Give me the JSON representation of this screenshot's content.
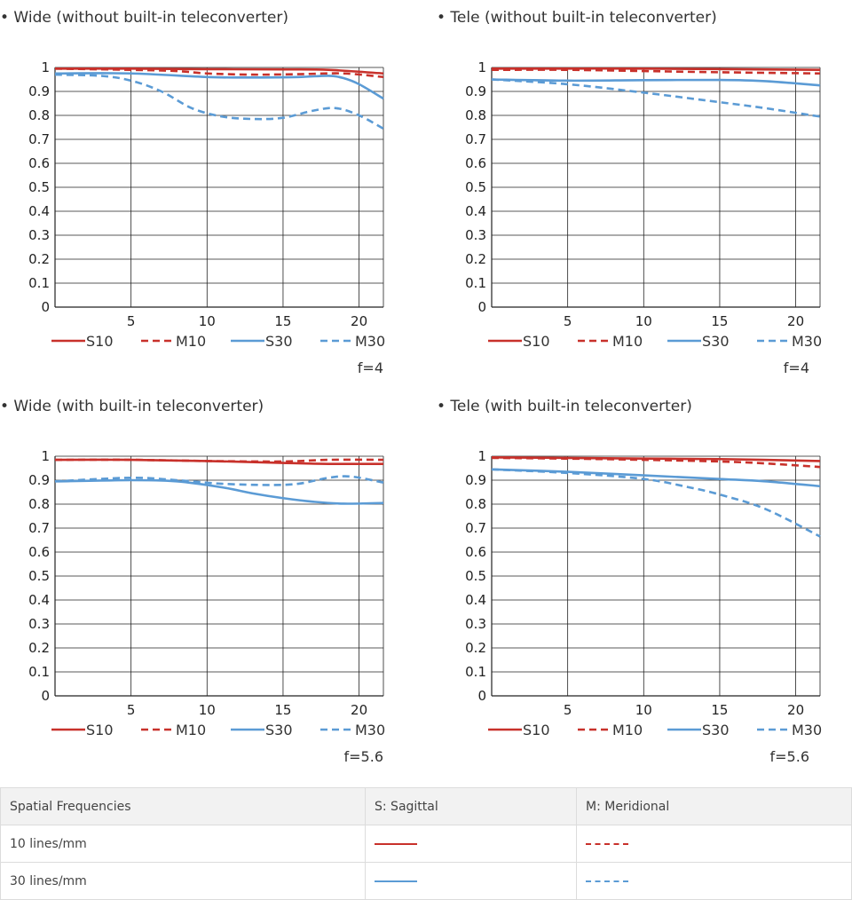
{
  "charts": [
    {
      "title": "• Wide (without built-in teleconverter)",
      "aperture": "f=4"
    },
    {
      "title": "• Tele (without built-in teleconverter)",
      "aperture": "f=4"
    },
    {
      "title": "• Wide (with built-in teleconverter)",
      "aperture": "f=5.6"
    },
    {
      "title": "• Tele (with built-in teleconverter)",
      "aperture": "f=5.6"
    }
  ],
  "chart_data": [
    {
      "type": "line",
      "title": "• Wide (without built-in teleconverter)",
      "xlim": [
        0,
        21.6
      ],
      "ylim": [
        0,
        1
      ],
      "x_ticks": [
        5,
        10,
        15,
        20
      ],
      "y_ticks": [
        0,
        0.1,
        0.2,
        0.3,
        0.4,
        0.5,
        0.6,
        0.7,
        0.8,
        0.9,
        1
      ],
      "grid": true,
      "legend": "bottom",
      "series": [
        {
          "name": "S10",
          "color": "#c8312b",
          "style": "solid",
          "points": [
            [
              0,
              0.995
            ],
            [
              5,
              0.995
            ],
            [
              10,
              0.993
            ],
            [
              15,
              0.992
            ],
            [
              18,
              0.99
            ],
            [
              21.6,
              0.975
            ]
          ]
        },
        {
          "name": "M10",
          "color": "#c8312b",
          "style": "dashed",
          "points": [
            [
              0,
              0.995
            ],
            [
              5,
              0.99
            ],
            [
              8,
              0.985
            ],
            [
              10,
              0.975
            ],
            [
              13,
              0.97
            ],
            [
              16,
              0.972
            ],
            [
              19,
              0.975
            ],
            [
              21.6,
              0.96
            ]
          ]
        },
        {
          "name": "S30",
          "color": "#5b9bd5",
          "style": "solid",
          "points": [
            [
              0,
              0.975
            ],
            [
              5,
              0.975
            ],
            [
              10,
              0.96
            ],
            [
              13,
              0.958
            ],
            [
              16,
              0.96
            ],
            [
              18,
              0.965
            ],
            [
              19,
              0.955
            ],
            [
              20,
              0.93
            ],
            [
              21.6,
              0.87
            ]
          ]
        },
        {
          "name": "M30",
          "color": "#5b9bd5",
          "style": "dashed",
          "points": [
            [
              0,
              0.97
            ],
            [
              3,
              0.965
            ],
            [
              5,
              0.945
            ],
            [
              7,
              0.9
            ],
            [
              9,
              0.83
            ],
            [
              11,
              0.795
            ],
            [
              13,
              0.785
            ],
            [
              15,
              0.79
            ],
            [
              17,
              0.82
            ],
            [
              18.5,
              0.83
            ],
            [
              20,
              0.8
            ],
            [
              21.6,
              0.745
            ]
          ]
        }
      ]
    },
    {
      "type": "line",
      "title": "• Tele (without built-in teleconverter)",
      "xlim": [
        0,
        21.6
      ],
      "ylim": [
        0,
        1
      ],
      "x_ticks": [
        5,
        10,
        15,
        20
      ],
      "y_ticks": [
        0,
        0.1,
        0.2,
        0.3,
        0.4,
        0.5,
        0.6,
        0.7,
        0.8,
        0.9,
        1
      ],
      "grid": true,
      "legend": "bottom",
      "series": [
        {
          "name": "S10",
          "color": "#c8312b",
          "style": "solid",
          "points": [
            [
              0,
              0.995
            ],
            [
              10,
              0.995
            ],
            [
              21.6,
              0.99
            ]
          ]
        },
        {
          "name": "M10",
          "color": "#c8312b",
          "style": "dashed",
          "points": [
            [
              0,
              0.99
            ],
            [
              5,
              0.99
            ],
            [
              10,
              0.985
            ],
            [
              15,
              0.98
            ],
            [
              21.6,
              0.975
            ]
          ]
        },
        {
          "name": "S30",
          "color": "#5b9bd5",
          "style": "solid",
          "points": [
            [
              0,
              0.95
            ],
            [
              5,
              0.945
            ],
            [
              10,
              0.947
            ],
            [
              15,
              0.948
            ],
            [
              18,
              0.943
            ],
            [
              21.6,
              0.925
            ]
          ]
        },
        {
          "name": "M30",
          "color": "#5b9bd5",
          "style": "dashed",
          "points": [
            [
              0,
              0.95
            ],
            [
              5,
              0.93
            ],
            [
              10,
              0.895
            ],
            [
              15,
              0.855
            ],
            [
              18,
              0.83
            ],
            [
              21.6,
              0.795
            ]
          ]
        }
      ]
    },
    {
      "type": "line",
      "title": "• Wide (with built-in teleconverter)",
      "xlim": [
        0,
        21.6
      ],
      "ylim": [
        0,
        1
      ],
      "x_ticks": [
        5,
        10,
        15,
        20
      ],
      "y_ticks": [
        0,
        0.1,
        0.2,
        0.3,
        0.4,
        0.5,
        0.6,
        0.7,
        0.8,
        0.9,
        1
      ],
      "grid": true,
      "legend": "bottom",
      "series": [
        {
          "name": "S10",
          "color": "#c8312b",
          "style": "solid",
          "points": [
            [
              0,
              0.985
            ],
            [
              5,
              0.985
            ],
            [
              10,
              0.98
            ],
            [
              15,
              0.972
            ],
            [
              18,
              0.968
            ],
            [
              21.6,
              0.968
            ]
          ]
        },
        {
          "name": "M10",
          "color": "#c8312b",
          "style": "dashed",
          "points": [
            [
              0,
              0.985
            ],
            [
              5,
              0.985
            ],
            [
              10,
              0.98
            ],
            [
              15,
              0.978
            ],
            [
              18,
              0.985
            ],
            [
              21.6,
              0.985
            ]
          ]
        },
        {
          "name": "S30",
          "color": "#5b9bd5",
          "style": "solid",
          "points": [
            [
              0,
              0.895
            ],
            [
              5,
              0.9
            ],
            [
              8,
              0.895
            ],
            [
              11,
              0.87
            ],
            [
              13,
              0.845
            ],
            [
              15,
              0.825
            ],
            [
              17,
              0.81
            ],
            [
              19,
              0.802
            ],
            [
              21.6,
              0.805
            ]
          ]
        },
        {
          "name": "M30",
          "color": "#5b9bd5",
          "style": "dashed",
          "points": [
            [
              0,
              0.895
            ],
            [
              5,
              0.91
            ],
            [
              8,
              0.9
            ],
            [
              11,
              0.885
            ],
            [
              14,
              0.88
            ],
            [
              16,
              0.885
            ],
            [
              18,
              0.91
            ],
            [
              19.5,
              0.915
            ],
            [
              21.6,
              0.89
            ]
          ]
        }
      ]
    },
    {
      "type": "line",
      "title": "• Tele (with built-in teleconverter)",
      "xlim": [
        0,
        21.6
      ],
      "ylim": [
        0,
        1
      ],
      "x_ticks": [
        5,
        10,
        15,
        20
      ],
      "y_ticks": [
        0,
        0.1,
        0.2,
        0.3,
        0.4,
        0.5,
        0.6,
        0.7,
        0.8,
        0.9,
        1
      ],
      "grid": true,
      "legend": "bottom",
      "series": [
        {
          "name": "S10",
          "color": "#c8312b",
          "style": "solid",
          "points": [
            [
              0,
              0.995
            ],
            [
              5,
              0.993
            ],
            [
              10,
              0.99
            ],
            [
              15,
              0.988
            ],
            [
              21.6,
              0.98
            ]
          ]
        },
        {
          "name": "M10",
          "color": "#c8312b",
          "style": "dashed",
          "points": [
            [
              0,
              0.993
            ],
            [
              5,
              0.99
            ],
            [
              10,
              0.985
            ],
            [
              15,
              0.978
            ],
            [
              18,
              0.97
            ],
            [
              21.6,
              0.955
            ]
          ]
        },
        {
          "name": "S30",
          "color": "#5b9bd5",
          "style": "solid",
          "points": [
            [
              0,
              0.945
            ],
            [
              5,
              0.935
            ],
            [
              10,
              0.92
            ],
            [
              15,
              0.905
            ],
            [
              18,
              0.895
            ],
            [
              21.6,
              0.875
            ]
          ]
        },
        {
          "name": "M30",
          "color": "#5b9bd5",
          "style": "dashed",
          "points": [
            [
              0,
              0.945
            ],
            [
              5,
              0.93
            ],
            [
              10,
              0.905
            ],
            [
              13,
              0.87
            ],
            [
              15,
              0.84
            ],
            [
              18,
              0.78
            ],
            [
              21.6,
              0.665
            ]
          ]
        }
      ]
    }
  ],
  "key_table": {
    "header": [
      "Spatial Frequencies",
      "S: Sagittal",
      "M: Meridional"
    ],
    "rows": [
      {
        "label": "10 lines/mm",
        "sagittal": "red-solid",
        "meridional": "red-dashed"
      },
      {
        "label": "30 lines/mm",
        "sagittal": "blue-solid",
        "meridional": "blue-dashed"
      }
    ]
  }
}
